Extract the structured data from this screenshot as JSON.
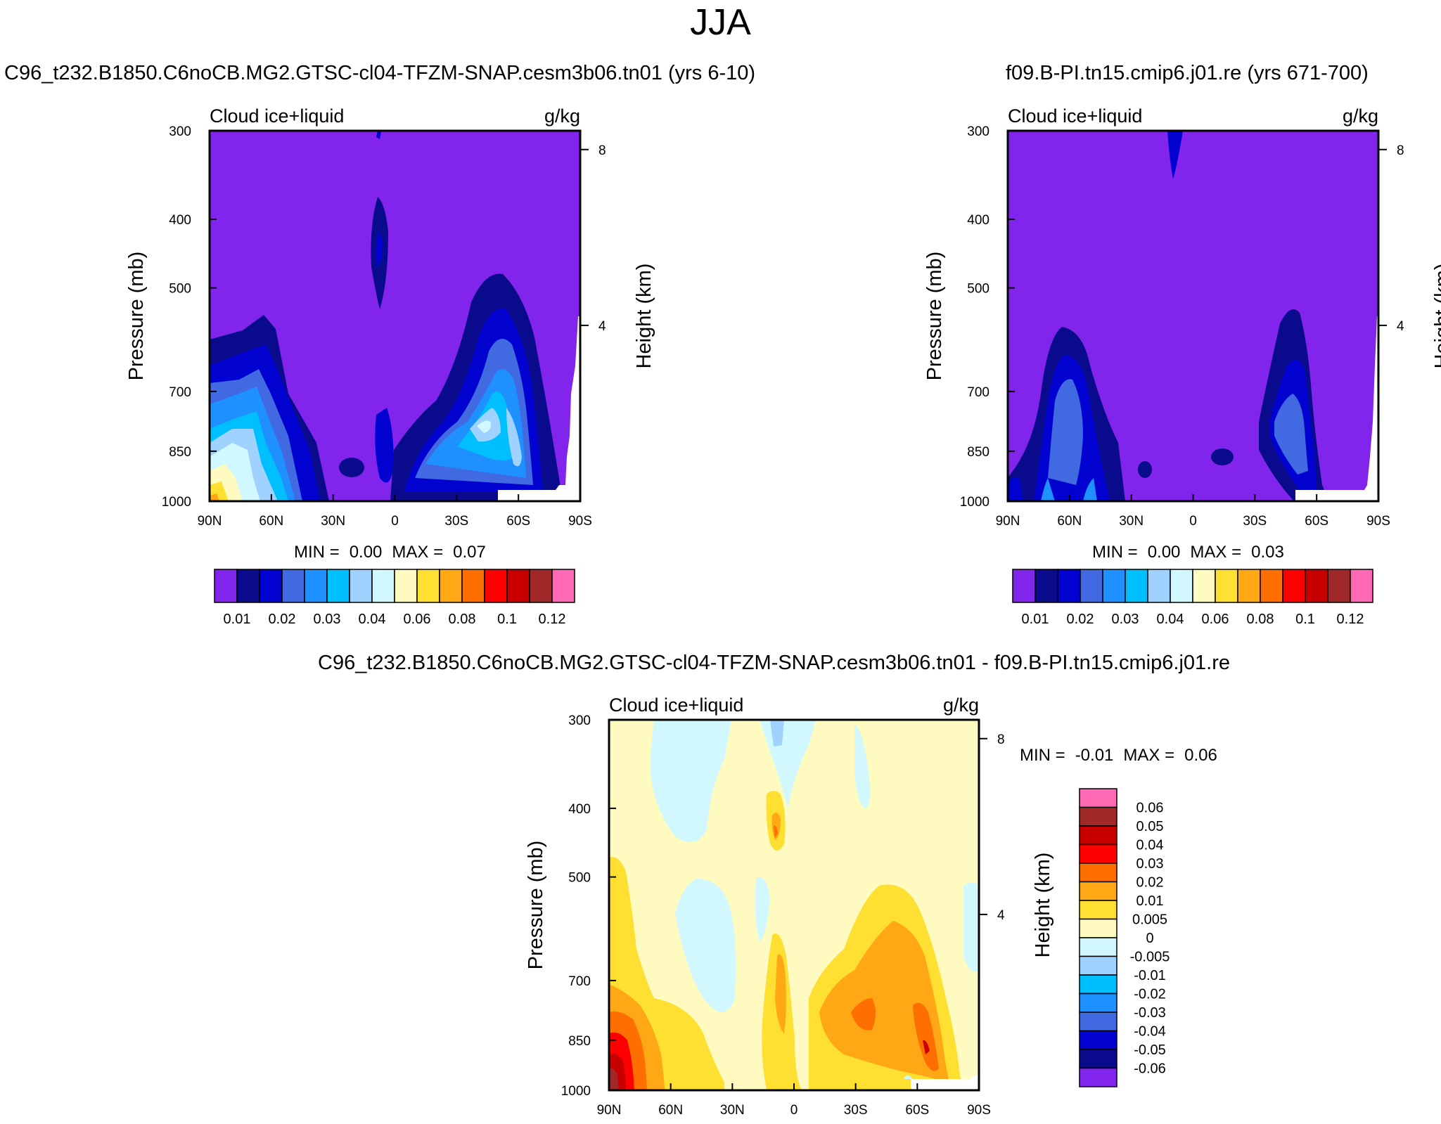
{
  "main_title": "JJA",
  "chart_data": [
    {
      "type": "contour",
      "id": "panel1",
      "case_title": "C96_t232.B1850.C6noCB.MG2.GTSC-cl04-TFZM-SNAP.cesm3b06.tn01 (yrs 6-10)",
      "field_label": "Cloud ice+liquid",
      "units": "g/kg",
      "ylabel": "Pressure (mb)",
      "ylabel_right": "Height (km)",
      "yticks": [
        "300",
        "400",
        "500",
        "700",
        "850",
        "1000"
      ],
      "ytick_values": [
        300,
        400,
        500,
        700,
        850,
        1000
      ],
      "ylim": [
        1000,
        300
      ],
      "right_ticks": [
        "8",
        "4"
      ],
      "right_tick_values": [
        8,
        4
      ],
      "xticks": [
        "90N",
        "60N",
        "30N",
        "0",
        "30S",
        "60S",
        "90S"
      ],
      "xlim": [
        90,
        -90
      ],
      "min_label": "MIN =",
      "min_value": "0.00",
      "max_label": "MAX =",
      "max_value": "0.07",
      "levels": [
        "0.01",
        "0.02",
        "0.03",
        "0.04",
        "0.06",
        "0.08",
        "0.1",
        "0.12"
      ],
      "colors": [
        "#8125ec",
        "#0a0a8c",
        "#0202d0",
        "#4169e1",
        "#1e90ff",
        "#00bfff",
        "#a0d2ff",
        "#d2f8ff",
        "#fffac0",
        "#ffe032",
        "#ffa714",
        "#ff6e00",
        "#ff0000",
        "#c80000",
        "#a02828",
        "#ff69b4"
      ]
    },
    {
      "type": "contour",
      "id": "panel2",
      "case_title": "f09.B-PI.tn15.cmip6.j01.re (yrs 671-700)",
      "field_label": "Cloud ice+liquid",
      "units": "g/kg",
      "ylabel": "Pressure (mb)",
      "ylabel_right": "Height (km)",
      "yticks": [
        "300",
        "400",
        "500",
        "700",
        "850",
        "1000"
      ],
      "ytick_values": [
        300,
        400,
        500,
        700,
        850,
        1000
      ],
      "ylim": [
        1000,
        300
      ],
      "right_ticks": [
        "8",
        "4"
      ],
      "right_tick_values": [
        8,
        4
      ],
      "xticks": [
        "90N",
        "60N",
        "30N",
        "0",
        "30S",
        "60S",
        "90S"
      ],
      "xlim": [
        90,
        -90
      ],
      "min_label": "MIN =",
      "min_value": "0.00",
      "max_label": "MAX =",
      "max_value": "0.03",
      "levels": [
        "0.01",
        "0.02",
        "0.03",
        "0.04",
        "0.06",
        "0.08",
        "0.1",
        "0.12"
      ],
      "colors": [
        "#8125ec",
        "#0a0a8c",
        "#0202d0",
        "#4169e1",
        "#1e90ff",
        "#00bfff",
        "#a0d2ff",
        "#d2f8ff",
        "#fffac0",
        "#ffe032",
        "#ffa714",
        "#ff6e00",
        "#ff0000",
        "#c80000",
        "#a02828",
        "#ff69b4"
      ]
    },
    {
      "type": "contour",
      "id": "panel3",
      "case_title": "C96_t232.B1850.C6noCB.MG2.GTSC-cl04-TFZM-SNAP.cesm3b06.tn01 - f09.B-PI.tn15.cmip6.j01.re",
      "field_label": "Cloud ice+liquid",
      "units": "g/kg",
      "ylabel": "Pressure (mb)",
      "ylabel_right": "Height (km)",
      "yticks": [
        "300",
        "400",
        "500",
        "700",
        "850",
        "1000"
      ],
      "ytick_values": [
        300,
        400,
        500,
        700,
        850,
        1000
      ],
      "ylim": [
        1000,
        300
      ],
      "right_ticks": [
        "8",
        "4"
      ],
      "right_tick_values": [
        8,
        4
      ],
      "xticks": [
        "90N",
        "60N",
        "30N",
        "0",
        "30S",
        "60S",
        "90S"
      ],
      "xlim": [
        90,
        -90
      ],
      "min_label": "MIN =",
      "min_value": "-0.01",
      "max_label": "MAX =",
      "max_value": "0.06",
      "levels": [
        "-0.06",
        "-0.05",
        "-0.04",
        "-0.03",
        "-0.02",
        "-0.01",
        "-0.005",
        "0",
        "0.005",
        "0.01",
        "0.02",
        "0.03",
        "0.04",
        "0.05",
        "0.06"
      ],
      "colors": [
        "#8125ec",
        "#0a0a8c",
        "#0202d0",
        "#4169e1",
        "#1e90ff",
        "#00bfff",
        "#a0d2ff",
        "#d2f8ff",
        "#fffac0",
        "#ffe032",
        "#ffa714",
        "#ff6e00",
        "#ff0000",
        "#c80000",
        "#a02828",
        "#ff69b4"
      ]
    }
  ]
}
